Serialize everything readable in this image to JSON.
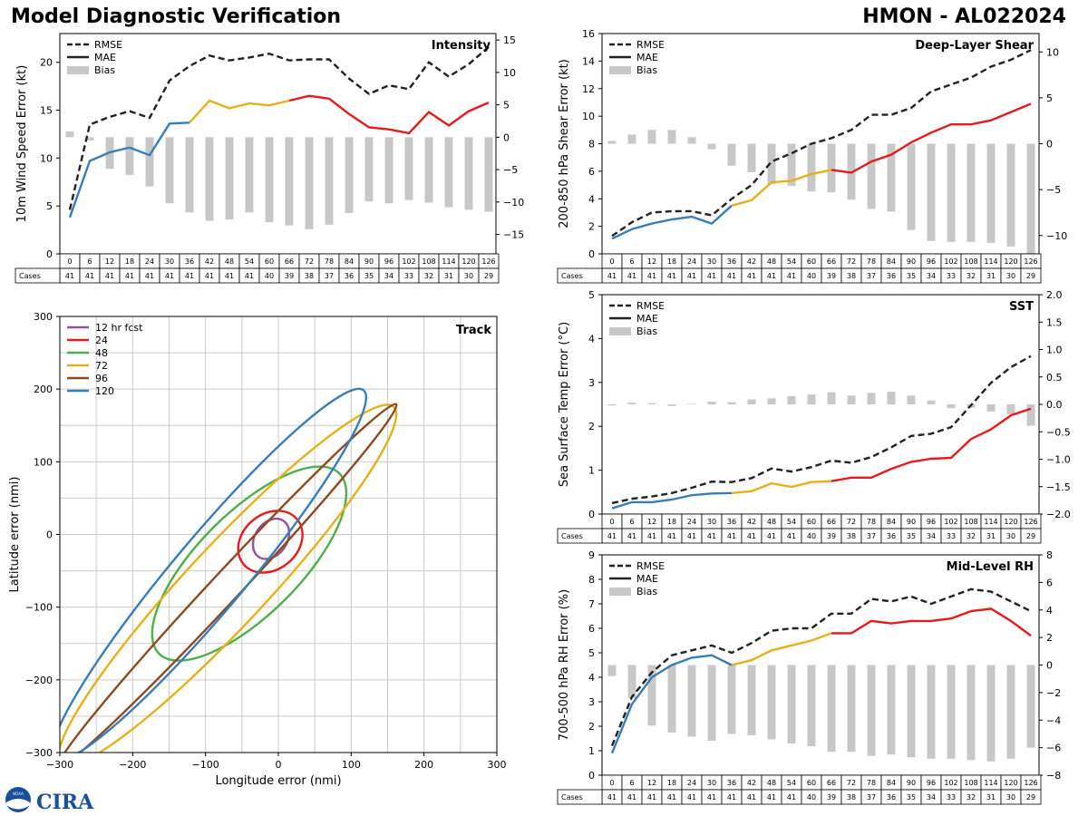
{
  "header": {
    "title_left": "Model Diagnostic Verification",
    "title_right": "HMON - AL022024"
  },
  "logo": {
    "org_text": "CIRA",
    "agency_text": "NOAA"
  },
  "legend_common": {
    "rmse": "RMSE",
    "mae": "MAE",
    "bias": "Bias"
  },
  "table": {
    "cases_label": "Cases",
    "hours": [
      "0",
      "6",
      "12",
      "18",
      "24",
      "30",
      "36",
      "42",
      "48",
      "54",
      "60",
      "66",
      "72",
      "78",
      "84",
      "90",
      "96",
      "102",
      "108",
      "114",
      "120",
      "126"
    ],
    "cases": [
      "41",
      "41",
      "41",
      "41",
      "41",
      "41",
      "41",
      "41",
      "41",
      "41",
      "40",
      "39",
      "38",
      "37",
      "36",
      "35",
      "34",
      "33",
      "32",
      "31",
      "30",
      "29"
    ]
  },
  "chart_data": [
    {
      "id": "intensity",
      "type": "line",
      "title": "Intensity",
      "ylabel": "10m Wind Speed Error (kt)",
      "ylim": [
        0,
        23
      ],
      "yticks": [
        0,
        5,
        10,
        15,
        20
      ],
      "y2lim": [
        -18,
        16
      ],
      "y2ticks": [
        -15,
        -10,
        -5,
        0,
        5,
        10,
        15
      ],
      "x": [
        0,
        6,
        12,
        18,
        24,
        30,
        36,
        42,
        48,
        54,
        60,
        66,
        72,
        78,
        84,
        90,
        96,
        102,
        108,
        114,
        120,
        126
      ],
      "rmse": [
        4.6,
        13.5,
        14.3,
        14.9,
        14.2,
        18.1,
        19.6,
        20.7,
        20.2,
        20.5,
        20.9,
        20.2,
        20.3,
        20.3,
        18.3,
        16.7,
        17.6,
        17.2,
        20.0,
        18.5,
        19.8,
        21.6
      ],
      "mae": [
        3.8,
        9.7,
        10.6,
        11.1,
        10.3,
        13.6,
        13.7,
        16.0,
        15.2,
        15.7,
        15.5,
        16.0,
        16.5,
        16.2,
        14.6,
        13.2,
        13.0,
        12.6,
        14.8,
        13.4,
        14.9,
        15.8
      ],
      "bias": [
        0.9,
        -0.5,
        -4.9,
        -5.8,
        -7.6,
        -10.2,
        -11.6,
        -12.9,
        -12.7,
        -11.6,
        -13.1,
        -13.6,
        -14.2,
        -13.5,
        -11.7,
        -9.9,
        -10.2,
        -9.7,
        -10.1,
        -10.8,
        -11.2,
        -11.5
      ]
    },
    {
      "id": "deep-layer-shear",
      "type": "line",
      "title": "Deep-Layer Shear",
      "ylabel": "200-850 hPa Shear Error (kt)",
      "ylim": [
        0,
        16
      ],
      "yticks": [
        0,
        2,
        4,
        6,
        8,
        10,
        12,
        14,
        16
      ],
      "y2lim": [
        -12,
        12
      ],
      "y2ticks": [
        -10,
        -5,
        0,
        5,
        10
      ],
      "x": [
        0,
        6,
        12,
        18,
        24,
        30,
        36,
        42,
        48,
        54,
        60,
        66,
        72,
        78,
        84,
        90,
        96,
        102,
        108,
        114,
        120,
        126
      ],
      "rmse": [
        1.3,
        2.3,
        3.0,
        3.1,
        3.1,
        2.8,
        4.0,
        5.0,
        6.7,
        7.3,
        8.0,
        8.4,
        9.0,
        10.1,
        10.1,
        10.6,
        11.8,
        12.3,
        12.8,
        13.6,
        14.1,
        14.8
      ],
      "mae": [
        1.1,
        1.8,
        2.2,
        2.5,
        2.7,
        2.2,
        3.5,
        3.9,
        5.2,
        5.3,
        5.8,
        6.1,
        5.9,
        6.7,
        7.2,
        8.1,
        8.8,
        9.4,
        9.4,
        9.7,
        10.3,
        10.9
      ],
      "bias": [
        0.3,
        1.0,
        1.5,
        1.5,
        0.7,
        -0.6,
        -2.4,
        -3.1,
        -4.4,
        -4.6,
        -5.2,
        -5.3,
        -6.1,
        -7.1,
        -7.4,
        -9.4,
        -10.6,
        -10.7,
        -10.7,
        -10.8,
        -11.2,
        -12.2
      ]
    },
    {
      "id": "sst",
      "type": "line",
      "title": "SST",
      "ylabel": "Sea Surface Temp Error (°C)",
      "ylim": [
        0,
        5
      ],
      "yticks": [
        0,
        1,
        2,
        3,
        4,
        5
      ],
      "y2lim": [
        -2,
        2
      ],
      "y2ticks": [
        -2.0,
        -1.5,
        -1.0,
        -0.5,
        0.0,
        0.5,
        1.0,
        1.5,
        2.0
      ],
      "x": [
        0,
        6,
        12,
        18,
        24,
        30,
        36,
        42,
        48,
        54,
        60,
        66,
        72,
        78,
        84,
        90,
        96,
        102,
        108,
        114,
        120,
        126
      ],
      "rmse": [
        0.25,
        0.35,
        0.4,
        0.48,
        0.6,
        0.74,
        0.73,
        0.82,
        1.04,
        0.97,
        1.07,
        1.22,
        1.17,
        1.3,
        1.52,
        1.78,
        1.83,
        1.98,
        2.48,
        2.99,
        3.35,
        3.6
      ],
      "mae": [
        0.13,
        0.27,
        0.27,
        0.33,
        0.43,
        0.47,
        0.48,
        0.52,
        0.7,
        0.62,
        0.73,
        0.75,
        0.83,
        0.83,
        1.03,
        1.19,
        1.26,
        1.28,
        1.71,
        1.93,
        2.25,
        2.4
      ],
      "bias": [
        -0.02,
        0.03,
        0.02,
        -0.03,
        0.01,
        0.05,
        0.04,
        0.09,
        0.11,
        0.15,
        0.18,
        0.22,
        0.16,
        0.21,
        0.23,
        0.16,
        0.07,
        -0.07,
        -0.06,
        -0.13,
        -0.18,
        -0.39
      ]
    },
    {
      "id": "mid-level-rh",
      "type": "line",
      "title": "Mid-Level RH",
      "ylabel": "700-500 hPa RH Error (%)",
      "ylim": [
        0,
        9
      ],
      "yticks": [
        0,
        1,
        2,
        3,
        4,
        5,
        6,
        7,
        8,
        9
      ],
      "y2lim": [
        -8,
        8
      ],
      "y2ticks": [
        -8,
        -6,
        -4,
        -2,
        0,
        2,
        4,
        6,
        8
      ],
      "x": [
        0,
        6,
        12,
        18,
        24,
        30,
        36,
        42,
        48,
        54,
        60,
        66,
        72,
        78,
        84,
        90,
        96,
        102,
        108,
        114,
        120,
        126
      ],
      "rmse": [
        1.2,
        3.2,
        4.2,
        4.9,
        5.1,
        5.3,
        5.0,
        5.4,
        5.9,
        6.0,
        6.0,
        6.6,
        6.6,
        7.2,
        7.1,
        7.3,
        7.0,
        7.3,
        7.6,
        7.5,
        7.1,
        6.7
      ],
      "mae": [
        0.9,
        2.9,
        4.0,
        4.5,
        4.8,
        4.9,
        4.5,
        4.7,
        5.1,
        5.3,
        5.5,
        5.8,
        5.8,
        6.3,
        6.2,
        6.3,
        6.3,
        6.4,
        6.7,
        6.8,
        6.3,
        5.7
      ],
      "bias": [
        -0.8,
        -2.4,
        -4.4,
        -4.9,
        -5.2,
        -5.5,
        -5.0,
        -5.1,
        -5.4,
        -5.7,
        -5.9,
        -6.3,
        -6.3,
        -6.6,
        -6.5,
        -6.7,
        -6.8,
        -6.8,
        -6.9,
        -7.0,
        -6.8,
        -6.0
      ]
    },
    {
      "id": "track",
      "type": "ellipse",
      "title": "Track",
      "xlabel": "Longitude error (nmi)",
      "ylabel": "Latitude error (nmi)",
      "xlim": [
        -300,
        300
      ],
      "ylim": [
        -300,
        300
      ],
      "xticks": [
        -300,
        -200,
        -100,
        0,
        100,
        200,
        300
      ],
      "yticks": [
        -300,
        -200,
        -100,
        0,
        100,
        200,
        300
      ],
      "ellipses": [
        {
          "label": "12 hr fcst",
          "color": "#984ea3",
          "cx": -10,
          "cy": -6,
          "rx": 30,
          "ry": 22,
          "angle": 55
        },
        {
          "label": "24",
          "color": "#e41a1c",
          "cx": -11,
          "cy": -10,
          "rx": 48,
          "ry": 38,
          "angle": 40
        },
        {
          "label": "48",
          "color": "#4daf4a",
          "cx": -40,
          "cy": -40,
          "rx": 175,
          "ry": 70,
          "angle": 45
        },
        {
          "label": "72",
          "color": "#e6b01a",
          "cx": -70,
          "cy": -70,
          "rx": 335,
          "ry": 55,
          "angle": 47
        },
        {
          "label": "96",
          "color": "#8c4a20",
          "cx": -70,
          "cy": -70,
          "rx": 340,
          "ry": 20,
          "angle": 47
        },
        {
          "label": "120",
          "color": "#377eb8",
          "cx": -95,
          "cy": -55,
          "rx": 330,
          "ry": 50,
          "angle": 50
        }
      ]
    }
  ],
  "colors": {
    "rmse": "#222222",
    "mae_segments": [
      "#377eb8",
      "#e6b01a",
      "#e41a1c"
    ],
    "bias": "#c8c8c8",
    "grid": "#cccccc"
  }
}
